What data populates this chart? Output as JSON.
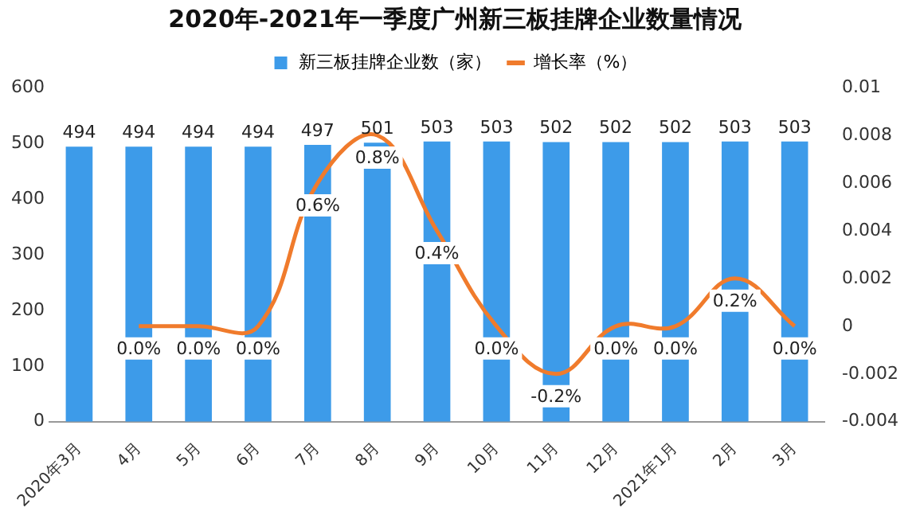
{
  "chart_data": {
    "type": "bar",
    "title": "2020年-2021年一季度广州新三板挂牌企业数量情况",
    "categories": [
      "2020年3月",
      "4月",
      "5月",
      "6月",
      "7月",
      "8月",
      "9月",
      "10月",
      "11月",
      "12月",
      "2021年1月",
      "2月",
      "3月"
    ],
    "series": [
      {
        "name": "新三板挂牌企业数（家）",
        "color": "#3d9be9",
        "values": [
          494,
          494,
          494,
          494,
          497,
          501,
          503,
          503,
          502,
          502,
          502,
          503,
          503
        ],
        "value_labels": [
          "494",
          "494",
          "494",
          "494",
          "497",
          "501",
          "503",
          "503",
          "502",
          "502",
          "502",
          "503",
          "503"
        ]
      },
      {
        "name": "增长率（%）",
        "type": "line",
        "axis": "y2",
        "color": "#f07b2c",
        "values": [
          null,
          0,
          0,
          0,
          0.006,
          0.008,
          0.004,
          0,
          -0.002,
          0,
          0,
          0.002,
          0
        ],
        "value_labels": [
          null,
          "0.0%",
          "0.0%",
          "0.0%",
          "0.6%",
          "0.8%",
          "0.4%",
          "0.0%",
          "-0.2%",
          "0.0%",
          "0.0%",
          "0.2%",
          "0.0%"
        ]
      }
    ],
    "ylim": [
      0,
      600
    ],
    "yticks": [
      0,
      100,
      200,
      300,
      400,
      500,
      600
    ],
    "y2lim": [
      -0.004,
      0.01
    ],
    "y2ticks": [
      -0.004,
      -0.002,
      0,
      0.002,
      0.004,
      0.006,
      0.008,
      0.01
    ],
    "legend": "top",
    "grid": false,
    "marker": "none",
    "line_style": "solid"
  }
}
